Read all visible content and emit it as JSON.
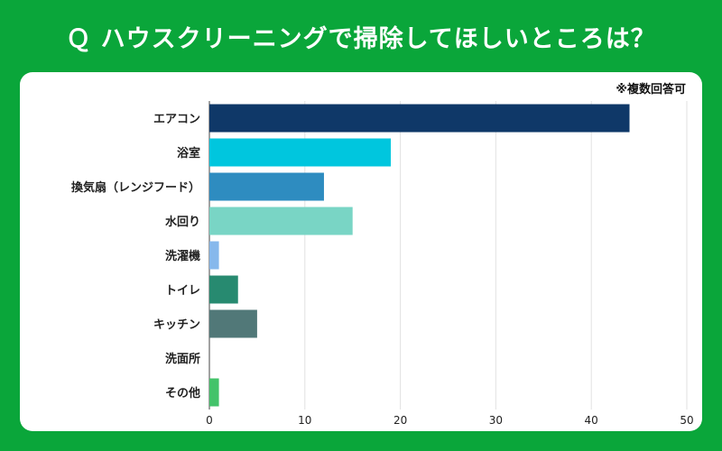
{
  "header": {
    "title": "Ｑ ハウスクリーニングで掃除してほしいところは？"
  },
  "note": "※複数回答可",
  "chart_data": {
    "type": "bar",
    "orientation": "horizontal",
    "categories": [
      "エアコン",
      "浴室",
      "換気扇（レンジフード）",
      "水回り",
      "洗濯機",
      "トイレ",
      "キッチン",
      "洗面所",
      "その他"
    ],
    "values": [
      44,
      19,
      12,
      15,
      1,
      3,
      5,
      0,
      1
    ],
    "colors": [
      "#0f3868",
      "#00c6de",
      "#2e8cc0",
      "#79d5c5",
      "#86b8ec",
      "#278a70",
      "#517878",
      "#9ad2a8",
      "#43c36a"
    ],
    "xlim": [
      0,
      50
    ],
    "xticks": [
      0,
      10,
      20,
      30,
      40,
      50
    ],
    "grid": true,
    "title": "",
    "xlabel": "",
    "ylabel": ""
  }
}
